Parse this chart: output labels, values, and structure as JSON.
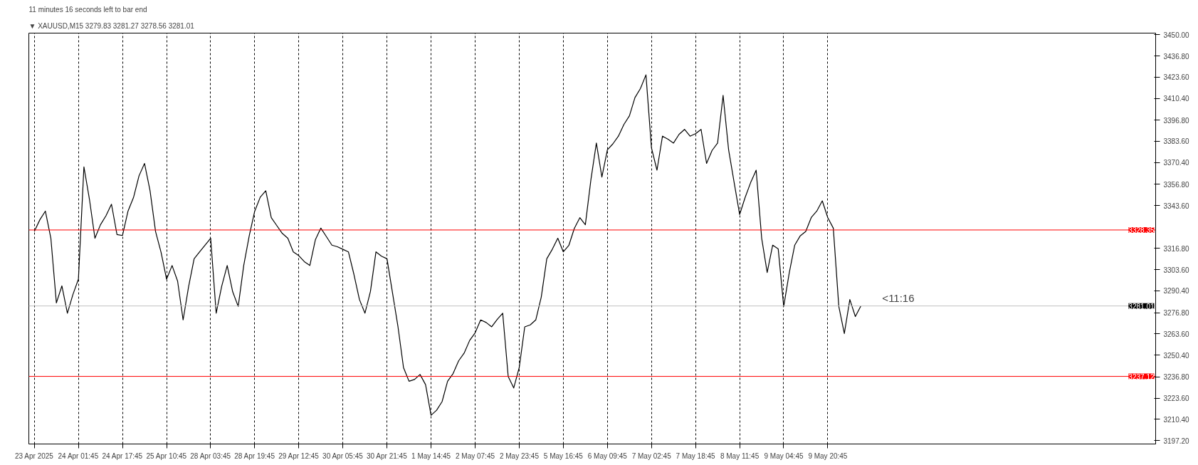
{
  "chart_data": {
    "type": "line",
    "title": "▼ XAUUSD,M15  3279.83 3281.27 3278.56 3281.01",
    "subtitle": "11 minutes 16 seconds left to bar end",
    "categories": [
      "23 Apr 2025",
      null,
      null,
      null,
      null,
      null,
      null,
      null,
      "24 Apr 01:45",
      null,
      null,
      null,
      null,
      null,
      null,
      null,
      "24 Apr 17:45",
      null,
      null,
      null,
      null,
      null,
      null,
      null,
      "25 Apr 10:45",
      null,
      null,
      null,
      null,
      null,
      null,
      null,
      "28 Apr 03:45",
      null,
      null,
      null,
      null,
      null,
      null,
      null,
      "28 Apr 19:45",
      null,
      null,
      null,
      null,
      null,
      null,
      null,
      "29 Apr 12:45",
      null,
      null,
      null,
      null,
      null,
      null,
      null,
      "30 Apr 05:45",
      null,
      null,
      null,
      null,
      null,
      null,
      null,
      "30 Apr 21:45",
      null,
      null,
      null,
      null,
      null,
      null,
      null,
      "1 May 14:45",
      null,
      null,
      null,
      null,
      null,
      null,
      null,
      "2 May 07:45",
      null,
      null,
      null,
      null,
      null,
      null,
      null,
      "2 May 23:45",
      null,
      null,
      null,
      null,
      null,
      null,
      null,
      "5 May 16:45",
      null,
      null,
      null,
      null,
      null,
      null,
      null,
      "6 May 09:45",
      null,
      null,
      null,
      null,
      null,
      null,
      null,
      "7 May 02:45",
      null,
      null,
      null,
      null,
      null,
      null,
      null,
      "7 May 18:45",
      null,
      null,
      null,
      null,
      null,
      null,
      null,
      "8 May 11:45",
      null,
      null,
      null,
      null,
      null,
      null,
      null,
      "9 May 04:45",
      null,
      null,
      null,
      null,
      null,
      null,
      null,
      "9 May 20:45",
      null,
      null,
      null,
      null,
      null,
      null,
      null,
      null,
      null,
      null,
      null,
      null,
      null,
      null,
      null,
      null,
      null,
      null,
      null,
      null,
      null,
      null,
      null,
      null,
      null,
      null,
      null,
      null,
      null,
      null,
      null,
      null,
      null,
      null,
      null,
      null,
      null,
      null,
      null,
      null,
      null,
      null,
      null,
      null,
      null,
      null,
      null,
      null,
      null,
      null,
      null,
      null,
      null,
      null,
      null,
      null,
      null,
      null,
      null
    ],
    "ylim": [
      3195,
      3451
    ],
    "yticks": [
      {
        "value": 3197.2,
        "label": "3197.20"
      },
      {
        "value": 3210.4,
        "label": "3210.40"
      },
      {
        "value": 3223.6,
        "label": "3223.60"
      },
      {
        "value": 3236.8,
        "label": "3236.80"
      },
      {
        "value": 3250.4,
        "label": "3250.40"
      },
      {
        "value": 3263.6,
        "label": "3263.60"
      },
      {
        "value": 3276.8,
        "label": "3276.80"
      },
      {
        "value": 3290.4,
        "label": "3290.40"
      },
      {
        "value": 3303.6,
        "label": "3303.60"
      },
      {
        "value": 3316.8,
        "label": "3316.80"
      },
      {
        "value": 3343.6,
        "label": "3343.60"
      },
      {
        "value": 3356.8,
        "label": "3356.80"
      },
      {
        "value": 3370.4,
        "label": "3370.40"
      },
      {
        "value": 3383.6,
        "label": "3383.60"
      },
      {
        "value": 3396.8,
        "label": "3396.80"
      },
      {
        "value": 3410.4,
        "label": "3410.40"
      },
      {
        "value": 3423.6,
        "label": "3423.60"
      },
      {
        "value": 3436.8,
        "label": "3436.80"
      },
      {
        "value": 3450.0,
        "label": "3450.00"
      }
    ],
    "grid": "x",
    "line_style": "solid",
    "series": [
      {
        "color": "#000000",
        "values": [
          3327.4,
          3334.7,
          3340.1,
          3323.2,
          3282.9,
          3293.5,
          3276.5,
          3288.1,
          3297.7,
          3367.7,
          3347.5,
          3323.2,
          3331.6,
          3337.2,
          3344.4,
          3325.5,
          3324.9,
          3340.1,
          3348.6,
          3362.1,
          3369.8,
          3352.8,
          3327.4,
          3314.4,
          3297.7,
          3306.2,
          3296.5,
          3272.3,
          3293.1,
          3310.4,
          3314.7,
          3319.0,
          3323.2,
          3276.5,
          3293.2,
          3306.2,
          3289.8,
          3280.7,
          3306.2,
          3324.7,
          3340.1,
          3348.8,
          3352.8,
          3336.0,
          3331.1,
          3326.2,
          3323.2,
          3314.7,
          3312.3,
          3308.6,
          3306.2,
          3322.2,
          3329.5,
          3324.2,
          3318.9,
          3317.9,
          3316.3,
          3314.7,
          3300.7,
          3285.0,
          3276.5,
          3290.1,
          3314.7,
          3312.0,
          3310.4,
          3289.2,
          3268.0,
          3242.6,
          3234.1,
          3235.2,
          3238.3,
          3232.0,
          3212.9,
          3216.0,
          3221.4,
          3234.1,
          3238.9,
          3246.8,
          3251.6,
          3259.5,
          3264.3,
          3272.3,
          3270.7,
          3268.0,
          3272.6,
          3276.5,
          3237.0,
          3229.9,
          3242.6,
          3268.0,
          3269.2,
          3272.3,
          3286.6,
          3310.4,
          3316.3,
          3323.2,
          3314.7,
          3318.7,
          3329.3,
          3336.0,
          3331.6,
          3359.4,
          3382.5,
          3361.3,
          3378.3,
          3382.0,
          3386.8,
          3394.1,
          3399.5,
          3410.8,
          3416.5,
          3425.0,
          3379.5,
          3365.6,
          3386.8,
          3384.9,
          3382.5,
          3387.9,
          3391.0,
          3386.8,
          3388.3,
          3391.0,
          3369.8,
          3377.9,
          3382.5,
          3412.2,
          3378.3,
          3358.0,
          3338.0,
          3348.6,
          3357.9,
          3365.6,
          3323.2,
          3301.9,
          3318.9,
          3316.6,
          3280.7,
          3301.5,
          3318.9,
          3324.7,
          3327.4,
          3336.1,
          3340.1,
          3346.5,
          3336.0,
          3329.5,
          3280.7,
          3263.8,
          3285.0,
          3274.4,
          3281.0,
          null,
          null,
          null,
          null,
          null,
          null,
          null,
          null,
          null,
          null,
          null,
          null,
          null,
          null,
          null,
          null,
          null,
          null,
          null,
          null,
          null,
          null,
          null,
          null,
          null,
          null,
          null,
          null,
          null,
          null,
          null,
          null,
          null,
          null,
          null,
          null,
          null,
          null,
          null,
          null,
          null,
          null,
          null,
          null,
          null,
          null,
          null,
          null,
          null,
          null,
          null,
          null,
          null
        ]
      }
    ],
    "ref_lines": [
      {
        "axis": "y",
        "value": 3328.35,
        "label": "3328.35",
        "color": "#ff0000"
      },
      {
        "axis": "y",
        "value": 3281.01,
        "label": "3281.01",
        "color": "#c0c0c0"
      },
      {
        "axis": "y",
        "value": 3237.12,
        "label": "3237.12",
        "color": "#ff0000"
      }
    ],
    "annotations": [
      "<11:16"
    ]
  }
}
